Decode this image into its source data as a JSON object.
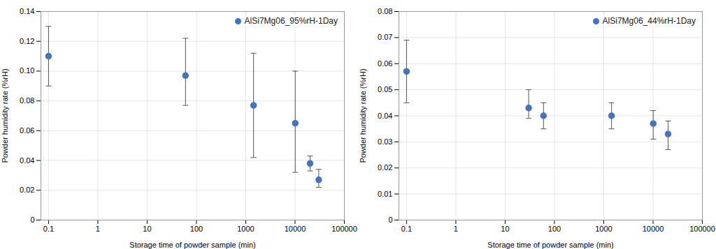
{
  "chart_data": [
    {
      "type": "scatter",
      "xlabel": "Storage time of powder sample (min)",
      "ylabel": "Powder humidity rate (%rH)",
      "x": [
        0.1,
        60,
        1440,
        10080,
        20160,
        30240
      ],
      "series": [
        {
          "name": "AlSi7Mg06_95%rH-1Day",
          "color": "#4472C4",
          "marker": "o",
          "values": [
            0.11,
            0.097,
            0.077,
            0.065,
            0.038,
            0.027
          ],
          "yerr_low": [
            0.02,
            0.02,
            0.035,
            0.033,
            0.005,
            0.005
          ],
          "yerr_high": [
            0.02,
            0.025,
            0.035,
            0.035,
            0.005,
            0.007
          ]
        }
      ],
      "xlim": [
        0.07,
        100000
      ],
      "ylim": [
        0,
        0.14
      ],
      "xticks": [
        0.1,
        1,
        10,
        100,
        1000,
        10000,
        100000
      ],
      "yticks": [
        0,
        0.02,
        0.04,
        0.06,
        0.08,
        {
          "value": 0.1,
          "label": "0.10"
        },
        0.12,
        0.14
      ],
      "log": "x",
      "grid": true,
      "legend": "upper right"
    },
    {
      "type": "scatter",
      "xlabel": "Storage time of powder sample (min)",
      "ylabel": "Powder humidity rate (%rH)",
      "x": [
        0.1,
        30,
        60,
        1440,
        10080,
        20160
      ],
      "series": [
        {
          "name": "AlSi7Mg06_44%rH-1Day",
          "color": "#4472C4",
          "marker": "o",
          "values": [
            0.057,
            0.043,
            0.04,
            0.04,
            0.037,
            0.033
          ],
          "yerr_low": [
            0.012,
            0.004,
            0.005,
            0.005,
            0.006,
            0.006
          ],
          "yerr_high": [
            0.012,
            0.007,
            0.005,
            0.005,
            0.005,
            0.005
          ]
        }
      ],
      "xlim": [
        0.07,
        100000
      ],
      "ylim": [
        0,
        0.08
      ],
      "xticks": [
        0.1,
        1,
        10,
        100,
        1000,
        10000,
        100000
      ],
      "yticks": [
        0,
        0.01,
        0.02,
        0.03,
        0.04,
        0.05,
        0.06,
        0.07,
        0.08
      ],
      "log": "x",
      "grid": true,
      "legend": "upper right"
    }
  ]
}
